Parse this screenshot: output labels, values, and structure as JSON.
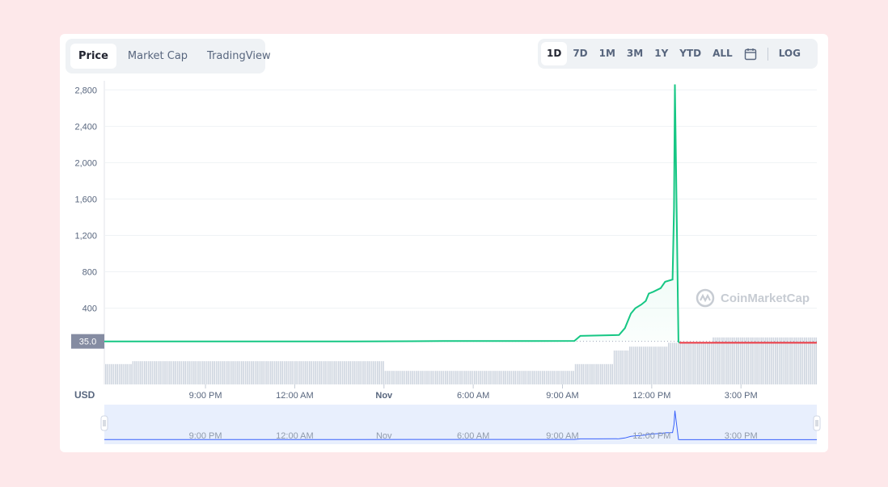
{
  "tabs": {
    "left": [
      "Price",
      "Market Cap",
      "TradingView"
    ],
    "left_active": 0,
    "right": [
      "1D",
      "7D",
      "1M",
      "3M",
      "1Y",
      "YTD",
      "ALL"
    ],
    "right_active": 0,
    "log_label": "LOG",
    "calendar_icon": "calendar-icon"
  },
  "watermark": "CoinMarketCap",
  "colors": {
    "up": "#16c784",
    "down": "#ea3943",
    "volume": "#cfd6e0",
    "navigator_line": "#3861fb",
    "navigator_bg": "#e8effd",
    "current_label_bg": "#858ca2"
  },
  "chart_data": {
    "type": "line",
    "xlabel": "",
    "ylabel": "USD",
    "current_price_label": "35.0",
    "ylim": [
      -30,
      2900
    ],
    "yticks": [
      400,
      800,
      1200,
      1600,
      2000,
      2400,
      2800
    ],
    "ytick_labels": [
      "400",
      "800",
      "1,200",
      "1,600",
      "2,000",
      "2,400",
      "2,800"
    ],
    "xtick_labels": [
      "9:00 PM",
      "12:00 AM",
      "Nov",
      "6:00 AM",
      "9:00 AM",
      "12:00 PM",
      "3:00 PM"
    ],
    "xtick_hours": [
      21,
      24,
      27,
      30,
      33,
      36,
      39
    ],
    "xlim_hours": [
      17.6,
      41.55
    ],
    "price_series": {
      "name": "Price",
      "x_hours": [
        17.6,
        20,
        23,
        26,
        29,
        32,
        33.4,
        33.6,
        34.2,
        34.9,
        35.1,
        35.3,
        35.45,
        35.65,
        35.8,
        35.9,
        36.05,
        36.3,
        36.45,
        36.7,
        36.75,
        36.78,
        36.85,
        36.9,
        36.93,
        37.1,
        38,
        39,
        40,
        41,
        41.55
      ],
      "y_values": [
        35,
        35,
        35,
        35,
        38,
        38,
        40,
        95,
        100,
        105,
        180,
        340,
        400,
        440,
        480,
        560,
        580,
        620,
        690,
        715,
        1500,
        2860,
        1200,
        35,
        20,
        20,
        20,
        20,
        20,
        20,
        20
      ]
    },
    "volume_series": {
      "name": "Volume",
      "segments": [
        {
          "from_hours": 17.6,
          "to_hours": 18.5,
          "level": 0.42
        },
        {
          "from_hours": 18.5,
          "to_hours": 27.0,
          "level": 0.48
        },
        {
          "from_hours": 27.0,
          "to_hours": 33.4,
          "level": 0.28
        },
        {
          "from_hours": 33.4,
          "to_hours": 34.7,
          "level": 0.42
        },
        {
          "from_hours": 34.7,
          "to_hours": 35.2,
          "level": 0.7
        },
        {
          "from_hours": 35.2,
          "to_hours": 36.5,
          "level": 0.78
        },
        {
          "from_hours": 36.5,
          "to_hours": 38.0,
          "level": 0.86
        },
        {
          "from_hours": 38.0,
          "to_hours": 41.55,
          "level": 0.97
        }
      ]
    },
    "grid": true
  }
}
